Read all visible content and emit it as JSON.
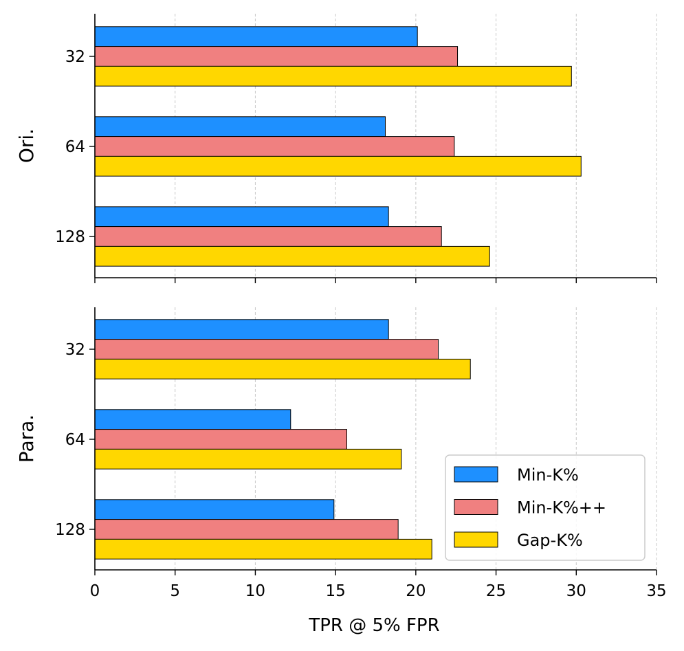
{
  "chart_data": {
    "type": "bar",
    "orientation": "horizontal",
    "xlabel": "TPR @ 5% FPR",
    "xlim": [
      0,
      35
    ],
    "xticks": [
      0,
      5,
      10,
      15,
      20,
      25,
      30,
      35
    ],
    "grid": "x-dashed",
    "legend": {
      "placement": "lower-right of bottom panel",
      "entries": [
        "Min-K%",
        "Min-K%++",
        "Gap-K%"
      ]
    },
    "colors": {
      "Min-K%": "#1e90ff",
      "Min-K%++": "#f08080",
      "Gap-K%": "#ffd700"
    },
    "panels": [
      {
        "ylabel": "Ori.",
        "categories": [
          "32",
          "64",
          "128"
        ],
        "series": [
          {
            "name": "Min-K%",
            "values": [
              20.1,
              18.1,
              18.3
            ]
          },
          {
            "name": "Min-K%++",
            "values": [
              22.6,
              22.4,
              21.6
            ]
          },
          {
            "name": "Gap-K%",
            "values": [
              29.7,
              30.3,
              24.6
            ]
          }
        ]
      },
      {
        "ylabel": "Para.",
        "categories": [
          "32",
          "64",
          "128"
        ],
        "series": [
          {
            "name": "Min-K%",
            "values": [
              18.3,
              12.2,
              14.9
            ]
          },
          {
            "name": "Min-K%++",
            "values": [
              21.4,
              15.7,
              18.9
            ]
          },
          {
            "name": "Gap-K%",
            "values": [
              23.4,
              19.1,
              21.0
            ]
          }
        ]
      }
    ]
  }
}
